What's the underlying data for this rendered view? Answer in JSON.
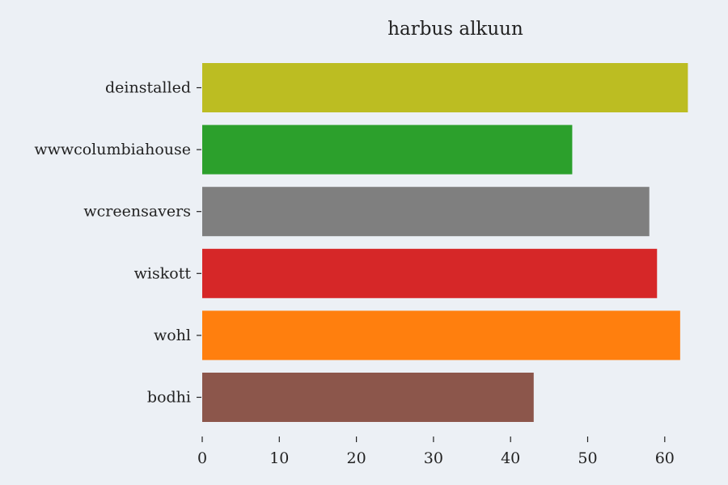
{
  "chart_data": {
    "type": "bar",
    "orientation": "horizontal",
    "title": "harbus alkuun",
    "xlabel": "",
    "ylabel": "",
    "categories": [
      "deinstalled",
      "wwwcolumbiahouse",
      "wcreensavers",
      "wiskott",
      "wohl",
      "bodhi"
    ],
    "values": [
      63,
      48,
      58,
      59,
      62,
      43
    ],
    "colors": [
      "#bcbd22",
      "#2ca02c",
      "#7f7f7f",
      "#d62728",
      "#ff7f0e",
      "#8c564b"
    ],
    "xlim": [
      0,
      63
    ],
    "xticks": [
      0,
      10,
      20,
      30,
      40,
      50,
      60
    ],
    "grid": false,
    "legend": "none"
  }
}
